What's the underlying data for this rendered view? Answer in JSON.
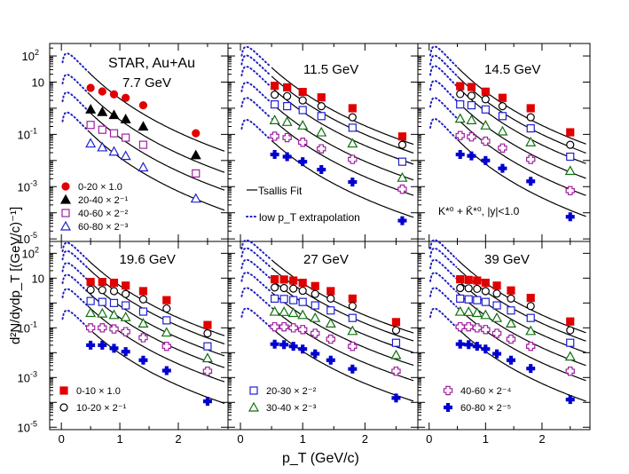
{
  "chart_data": {
    "type": "scatter",
    "y_scale": "log",
    "xlabel": "p_T (GeV/c)",
    "ylabel": "d²N/dydp_T [(GeV/c)⁻¹]",
    "xlim": [
      -0.2,
      2.85
    ],
    "ylim": [
      8e-06,
      300
    ],
    "x_ticks": [
      "0",
      "0.5",
      "1",
      "1.5",
      "2",
      "2.5"
    ],
    "x_tick_labels": [
      "0",
      "1",
      "2"
    ],
    "y_tick_labels": [
      {
        "value": 100,
        "mant": "10",
        "exp": "2"
      },
      {
        "value": 10,
        "mant": "10",
        "exp": ""
      },
      {
        "value": 0.1,
        "mant": "10",
        "exp": "-1"
      },
      {
        "value": 0.001,
        "mant": "10",
        "exp": "-3"
      },
      {
        "value": 1e-05,
        "mant": "10",
        "exp": "-5"
      }
    ],
    "legend_fit": "Tsallis Fit",
    "legend_extrap": "low p_T extrapolation",
    "particle_label": "K*⁰ + K̄*⁰, |y|<1.0",
    "experiment_label": "STAR, Au+Au",
    "centrality_legend_77": [
      {
        "label": "0-20 × 1.0",
        "marker": "circle",
        "filled": true,
        "color": "#e00000"
      },
      {
        "label": "20-40 × 2⁻¹",
        "marker": "triangle",
        "filled": true,
        "color": "#000000"
      },
      {
        "label": "40-60 × 2⁻²",
        "marker": "square",
        "filled": false,
        "color": "#a020a0"
      },
      {
        "label": "60-80 × 2⁻³",
        "marker": "triangle",
        "filled": false,
        "color": "#2020d0"
      }
    ],
    "centrality_legend": [
      {
        "label": "0-10 × 1.0",
        "marker": "square",
        "filled": true,
        "color": "#e00000"
      },
      {
        "label": "10-20 × 2⁻¹",
        "marker": "circle",
        "filled": false,
        "color": "#000000"
      },
      {
        "label": "20-30 × 2⁻²",
        "marker": "square",
        "filled": false,
        "color": "#2020d0"
      },
      {
        "label": "30-40 × 2⁻³",
        "marker": "triangle",
        "filled": false,
        "color": "#107010"
      },
      {
        "label": "40-60 × 2⁻⁴",
        "marker": "cross",
        "filled": false,
        "color": "#a020a0"
      },
      {
        "label": "60-80 × 2⁻⁵",
        "marker": "cross",
        "filled": true,
        "color": "#0000d0"
      }
    ],
    "panels": [
      {
        "energy": "7.7 GeV",
        "series": [
          {
            "name": "0-20 × 1.0",
            "marker": "circle",
            "filled": true,
            "color": "#e00000",
            "x": [
              0.5,
              0.7,
              0.9,
              1.1,
              1.4,
              2.3
            ],
            "y": [
              6.0,
              4.4,
              3.4,
              2.5,
              1.3,
              0.11
            ]
          },
          {
            "name": "20-40 × 2⁻¹",
            "marker": "triangle",
            "filled": true,
            "color": "#000000",
            "x": [
              0.5,
              0.7,
              0.9,
              1.1,
              1.4,
              2.3
            ],
            "y": [
              0.9,
              0.72,
              0.55,
              0.38,
              0.2,
              0.016
            ]
          },
          {
            "name": "40-60 × 2⁻²",
            "marker": "square",
            "filled": false,
            "color": "#a020a0",
            "x": [
              0.5,
              0.7,
              0.9,
              1.1,
              1.4,
              2.3
            ],
            "y": [
              0.23,
              0.15,
              0.11,
              0.075,
              0.04,
              0.0032
            ]
          },
          {
            "name": "60-80 × 2⁻³",
            "marker": "triangle",
            "filled": false,
            "color": "#2020d0",
            "x": [
              0.5,
              0.7,
              0.9,
              1.1,
              1.4,
              2.3
            ],
            "y": [
              0.045,
              0.032,
              0.022,
              0.015,
              0.0055,
              0.00035
            ]
          }
        ]
      },
      {
        "energy": "11.5 GeV",
        "series": [
          {
            "name": "0-10 × 1.0",
            "marker": "square",
            "filled": true,
            "color": "#e00000",
            "x": [
              0.55,
              0.75,
              1.0,
              1.3,
              1.8,
              2.6
            ],
            "y": [
              7.2,
              6.3,
              4.2,
              2.6,
              1.0,
              0.083
            ]
          },
          {
            "name": "10-20 × 2⁻¹",
            "marker": "circle",
            "filled": false,
            "color": "#000000",
            "x": [
              0.55,
              0.75,
              1.0,
              1.3,
              1.8,
              2.6
            ],
            "y": [
              3.3,
              2.9,
              2.0,
              1.2,
              0.45,
              0.04
            ]
          },
          {
            "name": "20-30 × 2⁻²",
            "marker": "square",
            "filled": false,
            "color": "#2020d0",
            "x": [
              0.55,
              0.75,
              1.0,
              1.3,
              1.8,
              2.6
            ],
            "y": [
              1.4,
              1.2,
              0.85,
              0.5,
              0.18,
              0.009
            ]
          },
          {
            "name": "30-40 × 2⁻³",
            "marker": "triangle",
            "filled": false,
            "color": "#107010",
            "x": [
              0.55,
              0.75,
              1.0,
              1.3,
              1.8,
              2.6
            ],
            "y": [
              0.35,
              0.3,
              0.22,
              0.12,
              0.045,
              0.0022
            ]
          },
          {
            "name": "40-60 × 2⁻⁴",
            "marker": "cross",
            "filled": false,
            "color": "#a020a0",
            "x": [
              0.55,
              0.75,
              1.0,
              1.3,
              1.8,
              2.6
            ],
            "y": [
              0.085,
              0.075,
              0.05,
              0.028,
              0.011,
              0.0008
            ]
          },
          {
            "name": "60-80 × 2⁻⁵",
            "marker": "cross",
            "filled": true,
            "color": "#0000d0",
            "x": [
              0.55,
              0.75,
              1.0,
              1.3,
              1.8,
              2.6
            ],
            "y": [
              0.017,
              0.014,
              0.009,
              0.0045,
              0.0015,
              5e-05
            ]
          }
        ]
      },
      {
        "energy": "14.5 GeV",
        "series": [
          {
            "name": "0-10 × 1.0",
            "marker": "square",
            "filled": true,
            "color": "#e00000",
            "x": [
              0.55,
              0.75,
              1.0,
              1.3,
              1.8,
              2.5
            ],
            "y": [
              7.0,
              6.5,
              4.3,
              2.5,
              1.0,
              0.12
            ]
          },
          {
            "name": "10-20 × 2⁻¹",
            "marker": "circle",
            "filled": false,
            "color": "#000000",
            "x": [
              0.55,
              0.75,
              1.0,
              1.3,
              1.8,
              2.5
            ],
            "y": [
              3.5,
              3.0,
              2.2,
              1.2,
              0.45,
              0.04
            ]
          },
          {
            "name": "20-30 × 2⁻²",
            "marker": "square",
            "filled": false,
            "color": "#2020d0",
            "x": [
              0.55,
              0.75,
              1.0,
              1.3,
              1.8,
              2.5
            ],
            "y": [
              1.4,
              1.3,
              0.9,
              0.5,
              0.17,
              0.014
            ]
          },
          {
            "name": "30-40 × 2⁻³",
            "marker": "triangle",
            "filled": false,
            "color": "#107010",
            "x": [
              0.55,
              0.75,
              1.0,
              1.3,
              1.8,
              2.5
            ],
            "y": [
              0.4,
              0.35,
              0.22,
              0.13,
              0.05,
              0.004
            ]
          },
          {
            "name": "40-60 × 2⁻⁴",
            "marker": "cross",
            "filled": false,
            "color": "#a020a0",
            "x": [
              0.55,
              0.75,
              1.0,
              1.3,
              1.8,
              2.5
            ],
            "y": [
              0.09,
              0.08,
              0.055,
              0.03,
              0.011,
              0.0007
            ]
          },
          {
            "name": "60-80 × 2⁻⁵",
            "marker": "cross",
            "filled": true,
            "color": "#0000d0",
            "x": [
              0.55,
              0.75,
              1.0,
              1.3,
              1.8,
              2.5
            ],
            "y": [
              0.017,
              0.015,
              0.01,
              0.005,
              0.0016,
              7e-05
            ]
          }
        ]
      },
      {
        "energy": "19.6 GeV",
        "series": [
          {
            "name": "0-10 × 1.0",
            "marker": "square",
            "filled": true,
            "color": "#e00000",
            "x": [
              0.5,
              0.7,
              0.9,
              1.1,
              1.4,
              1.8,
              2.5
            ],
            "y": [
              7.0,
              7.0,
              6.5,
              5.0,
              3.0,
              1.3,
              0.13
            ]
          },
          {
            "name": "10-20 × 2⁻¹",
            "marker": "circle",
            "filled": false,
            "color": "#000000",
            "x": [
              0.5,
              0.7,
              0.9,
              1.1,
              1.4,
              1.8,
              2.5
            ],
            "y": [
              3.4,
              3.3,
              3.0,
              2.3,
              1.4,
              0.6,
              0.06
            ]
          },
          {
            "name": "20-30 × 2⁻²",
            "marker": "square",
            "filled": false,
            "color": "#2020d0",
            "x": [
              0.5,
              0.7,
              0.9,
              1.1,
              1.4,
              1.8,
              2.5
            ],
            "y": [
              1.2,
              1.1,
              1.0,
              0.8,
              0.45,
              0.2,
              0.018
            ]
          },
          {
            "name": "30-40 × 2⁻³",
            "marker": "triangle",
            "filled": false,
            "color": "#107010",
            "x": [
              0.5,
              0.7,
              0.9,
              1.1,
              1.4,
              1.8,
              2.5
            ],
            "y": [
              0.4,
              0.38,
              0.33,
              0.27,
              0.15,
              0.065,
              0.006
            ]
          },
          {
            "name": "40-60 × 2⁻⁴",
            "marker": "cross",
            "filled": false,
            "color": "#a020a0",
            "x": [
              0.5,
              0.7,
              0.9,
              1.1,
              1.4,
              1.8,
              2.5
            ],
            "y": [
              0.1,
              0.1,
              0.09,
              0.07,
              0.04,
              0.018,
              0.0018
            ]
          },
          {
            "name": "60-80 × 2⁻⁵",
            "marker": "cross",
            "filled": true,
            "color": "#0000d0",
            "x": [
              0.5,
              0.7,
              0.9,
              1.1,
              1.4,
              1.8,
              2.5
            ],
            "y": [
              0.02,
              0.02,
              0.015,
              0.011,
              0.005,
              0.0019,
              0.00011
            ]
          }
        ]
      },
      {
        "energy": "27 GeV",
        "series": [
          {
            "name": "0-10 × 1.0",
            "marker": "square",
            "filled": true,
            "color": "#e00000",
            "x": [
              0.55,
              0.7,
              0.85,
              1.0,
              1.2,
              1.45,
              1.8,
              2.5
            ],
            "y": [
              9.0,
              8.8,
              8.0,
              6.5,
              4.8,
              3.0,
              1.5,
              0.17
            ]
          },
          {
            "name": "10-20 × 2⁻¹",
            "marker": "circle",
            "filled": false,
            "color": "#000000",
            "x": [
              0.55,
              0.7,
              0.85,
              1.0,
              1.2,
              1.45,
              1.8,
              2.5
            ],
            "y": [
              4.2,
              4.0,
              3.8,
              3.1,
              2.3,
              1.5,
              0.75,
              0.08
            ]
          },
          {
            "name": "20-30 × 2⁻²",
            "marker": "square",
            "filled": false,
            "color": "#2020d0",
            "x": [
              0.55,
              0.7,
              0.85,
              1.0,
              1.2,
              1.45,
              1.8,
              2.5
            ],
            "y": [
              1.5,
              1.45,
              1.3,
              1.1,
              0.8,
              0.5,
              0.25,
              0.025
            ]
          },
          {
            "name": "30-40 × 2⁻³",
            "marker": "triangle",
            "filled": false,
            "color": "#107010",
            "x": [
              0.55,
              0.7,
              0.85,
              1.0,
              1.2,
              1.45,
              1.8,
              2.5
            ],
            "y": [
              0.45,
              0.44,
              0.4,
              0.33,
              0.25,
              0.15,
              0.075,
              0.008
            ]
          },
          {
            "name": "40-60 × 2⁻⁴",
            "marker": "cross",
            "filled": false,
            "color": "#a020a0",
            "x": [
              0.55,
              0.7,
              0.85,
              1.0,
              1.2,
              1.45,
              1.8,
              2.5
            ],
            "y": [
              0.11,
              0.11,
              0.1,
              0.085,
              0.06,
              0.035,
              0.018,
              0.0018
            ]
          },
          {
            "name": "60-80 × 2⁻⁵",
            "marker": "cross",
            "filled": true,
            "color": "#0000d0",
            "x": [
              0.55,
              0.7,
              0.85,
              1.0,
              1.2,
              1.45,
              1.8,
              2.5
            ],
            "y": [
              0.022,
              0.021,
              0.018,
              0.014,
              0.009,
              0.005,
              0.0022,
              0.00015
            ]
          }
        ]
      },
      {
        "energy": "39 GeV",
        "series": [
          {
            "name": "0-10 × 1.0",
            "marker": "square",
            "filled": true,
            "color": "#e00000",
            "x": [
              0.55,
              0.7,
              0.85,
              1.0,
              1.2,
              1.45,
              1.8,
              2.5
            ],
            "y": [
              9.0,
              8.5,
              8.0,
              6.5,
              5.0,
              3.2,
              1.6,
              0.18
            ]
          },
          {
            "name": "10-20 × 2⁻¹",
            "marker": "circle",
            "filled": false,
            "color": "#000000",
            "x": [
              0.55,
              0.7,
              0.85,
              1.0,
              1.2,
              1.45,
              1.8,
              2.5
            ],
            "y": [
              4.0,
              3.9,
              3.7,
              3.0,
              2.4,
              1.5,
              0.75,
              0.08
            ]
          },
          {
            "name": "20-30 × 2⁻²",
            "marker": "square",
            "filled": false,
            "color": "#2020d0",
            "x": [
              0.55,
              0.7,
              0.85,
              1.0,
              1.2,
              1.45,
              1.8,
              2.5
            ],
            "y": [
              1.5,
              1.4,
              1.3,
              1.1,
              0.8,
              0.5,
              0.25,
              0.025
            ]
          },
          {
            "name": "30-40 × 2⁻³",
            "marker": "triangle",
            "filled": false,
            "color": "#107010",
            "x": [
              0.55,
              0.7,
              0.85,
              1.0,
              1.2,
              1.45,
              1.8,
              2.5
            ],
            "y": [
              0.45,
              0.44,
              0.4,
              0.33,
              0.25,
              0.15,
              0.075,
              0.007
            ]
          },
          {
            "name": "40-60 × 2⁻⁴",
            "marker": "cross",
            "filled": false,
            "color": "#a020a0",
            "x": [
              0.55,
              0.7,
              0.85,
              1.0,
              1.2,
              1.45,
              1.8,
              2.5
            ],
            "y": [
              0.11,
              0.11,
              0.1,
              0.085,
              0.06,
              0.035,
              0.018,
              0.0018
            ]
          },
          {
            "name": "60-80 × 2⁻⁵",
            "marker": "cross",
            "filled": true,
            "color": "#0000d0",
            "x": [
              0.55,
              0.7,
              0.85,
              1.0,
              1.2,
              1.45,
              1.8,
              2.5
            ],
            "y": [
              0.022,
              0.021,
              0.018,
              0.014,
              0.009,
              0.005,
              0.0023,
              0.00013
            ]
          }
        ]
      }
    ]
  }
}
